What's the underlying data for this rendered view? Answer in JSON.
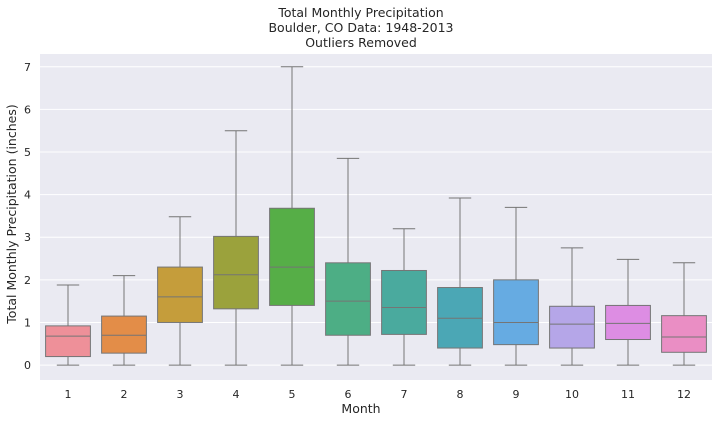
{
  "chart_data": {
    "type": "box",
    "title": [
      "Total Monthly Precipitation",
      "Boulder, CO Data: 1948-2013",
      "Outliers Removed"
    ],
    "xlabel": "Month",
    "ylabel": "Total Monthly Precipitation (inches)",
    "categories": [
      "1",
      "2",
      "3",
      "4",
      "5",
      "6",
      "7",
      "8",
      "9",
      "10",
      "11",
      "12"
    ],
    "yticks": [
      "0",
      "1",
      "2",
      "3",
      "4",
      "5",
      "6",
      "7"
    ],
    "ylim": [
      -0.35,
      7.3
    ],
    "grid": true,
    "background": "#eaeaf2",
    "boxes": [
      {
        "month": "1",
        "min": 0,
        "q1": 0.2,
        "median": 0.68,
        "q3": 0.92,
        "max": 1.88,
        "color": "#ee9099"
      },
      {
        "month": "2",
        "min": 0,
        "q1": 0.28,
        "median": 0.7,
        "q3": 1.15,
        "max": 2.1,
        "color": "#e38d48"
      },
      {
        "month": "3",
        "min": 0,
        "q1": 1.0,
        "median": 1.6,
        "q3": 2.3,
        "max": 3.48,
        "color": "#c59d3b"
      },
      {
        "month": "4",
        "min": 0,
        "q1": 1.32,
        "median": 2.12,
        "q3": 3.02,
        "max": 5.5,
        "color": "#9ba23c"
      },
      {
        "month": "5",
        "min": 0,
        "q1": 1.4,
        "median": 2.3,
        "q3": 3.68,
        "max": 7.0,
        "color": "#56ae47"
      },
      {
        "month": "6",
        "min": 0,
        "q1": 0.7,
        "median": 1.5,
        "q3": 2.4,
        "max": 4.85,
        "color": "#4dae85"
      },
      {
        "month": "7",
        "min": 0,
        "q1": 0.72,
        "median": 1.35,
        "q3": 2.22,
        "max": 3.2,
        "color": "#4aaa9e"
      },
      {
        "month": "8",
        "min": 0,
        "q1": 0.4,
        "median": 1.1,
        "q3": 1.82,
        "max": 3.92,
        "color": "#4ba7b5"
      },
      {
        "month": "9",
        "min": 0,
        "q1": 0.48,
        "median": 1.0,
        "q3": 2.0,
        "max": 3.7,
        "color": "#66abe2"
      },
      {
        "month": "10",
        "min": 0,
        "q1": 0.4,
        "median": 0.96,
        "q3": 1.38,
        "max": 2.75,
        "color": "#b5a6e8"
      },
      {
        "month": "11",
        "min": 0,
        "q1": 0.6,
        "median": 0.98,
        "q3": 1.4,
        "max": 2.48,
        "color": "#dd8de3"
      },
      {
        "month": "12",
        "min": 0,
        "q1": 0.3,
        "median": 0.66,
        "q3": 1.16,
        "max": 2.4,
        "color": "#ea8ec4"
      }
    ]
  }
}
